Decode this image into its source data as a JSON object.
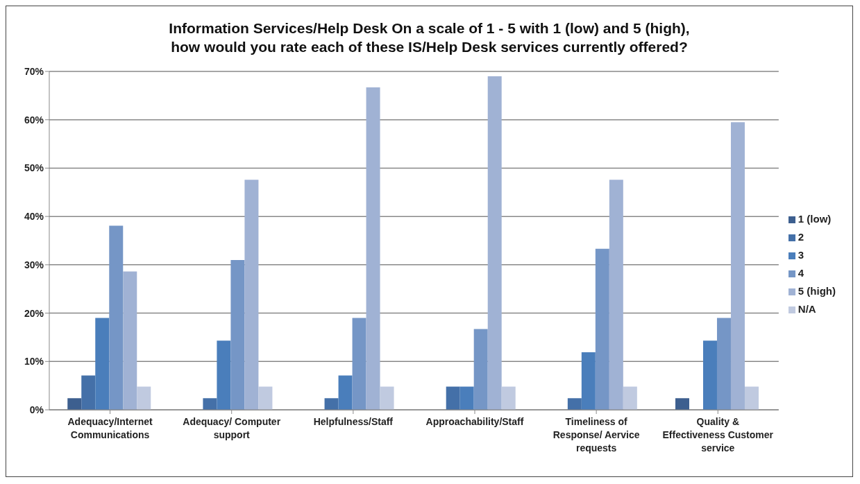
{
  "chart_data": {
    "type": "bar",
    "title": "Information Services/Help Desk On a scale of 1 - 5 with 1 (low) and 5 (high), how would you rate each of these IS/Help Desk services currently offered?",
    "categories": [
      "Adequacy/Internet Communications",
      "Adequacy/ Computer support",
      "Helpfulness/Staff",
      "Approachability/Staff",
      "Timeliness of Response/ Aervice requests",
      "Quality & Effectiveness Customer service"
    ],
    "series": [
      {
        "name": "1 (low)",
        "color": "#3d5f8f",
        "values": [
          2.4,
          0,
          0,
          0,
          0,
          2.4
        ]
      },
      {
        "name": "2",
        "color": "#4470a8",
        "values": [
          7.1,
          2.4,
          2.4,
          4.8,
          2.4,
          0
        ]
      },
      {
        "name": "3",
        "color": "#4a7ebb",
        "values": [
          19.0,
          14.3,
          7.1,
          4.8,
          11.9,
          14.3
        ]
      },
      {
        "name": "4",
        "color": "#7596c6",
        "values": [
          38.1,
          31.0,
          19.0,
          16.7,
          33.3,
          19.0
        ]
      },
      {
        "name": "5 (high)",
        "color": "#a0b2d4",
        "values": [
          28.6,
          47.6,
          66.7,
          69.0,
          47.6,
          59.5
        ]
      },
      {
        "name": "N/A",
        "color": "#c0cae0",
        "values": [
          4.8,
          4.8,
          4.8,
          4.8,
          4.8,
          4.8
        ]
      }
    ],
    "ylim": [
      0,
      70
    ],
    "yticks": [
      {
        "value": 0,
        "label": "0%"
      },
      {
        "value": 10,
        "label": "10%"
      },
      {
        "value": 20,
        "label": "20%"
      },
      {
        "value": 30,
        "label": "30%"
      },
      {
        "value": 40,
        "label": "40%"
      },
      {
        "value": 50,
        "label": "50%"
      },
      {
        "value": 60,
        "label": "60%"
      },
      {
        "value": 70,
        "label": "70%"
      }
    ],
    "grid": "y",
    "legend": "right"
  }
}
